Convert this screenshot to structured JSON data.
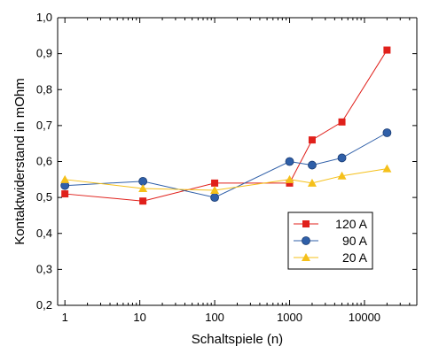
{
  "chart_data": {
    "type": "line",
    "xlabel": "Schaltspiele (n)",
    "ylabel": "Kontaktwiderstand in mOhm",
    "xscale": "log",
    "xlim": [
      0.8,
      50000
    ],
    "ylim": [
      0.2,
      1.0
    ],
    "xticks": [
      1,
      10,
      100,
      1000,
      10000
    ],
    "xtick_labels": [
      "1",
      "10",
      "100",
      "1000",
      "10000"
    ],
    "yticks": [
      0.2,
      0.3,
      0.4,
      0.5,
      0.6,
      0.7,
      0.8,
      0.9,
      1.0
    ],
    "ytick_labels": [
      "0,2",
      "0,3",
      "0,4",
      "0,5",
      "0,6",
      "0,7",
      "0,8",
      "0,9",
      "1,0"
    ],
    "grid": false,
    "legend_position": "lower-right",
    "series": [
      {
        "name": "120 A",
        "color": "#e0201b",
        "marker": "square",
        "x": [
          1,
          11,
          100,
          1000,
          2000,
          5000,
          20000
        ],
        "y": [
          0.51,
          0.49,
          0.54,
          0.54,
          0.66,
          0.71,
          0.91
        ]
      },
      {
        "name": "90 A",
        "color": "#2f5fa8",
        "marker": "circle",
        "x": [
          1,
          11,
          100,
          1000,
          2000,
          5000,
          20000
        ],
        "y": [
          0.533,
          0.545,
          0.5,
          0.6,
          0.59,
          0.61,
          0.68
        ]
      },
      {
        "name": "20 A",
        "color": "#f5c01a",
        "marker": "triangle",
        "x": [
          1,
          11,
          100,
          1000,
          2000,
          5000,
          20000
        ],
        "y": [
          0.55,
          0.525,
          0.52,
          0.55,
          0.54,
          0.56,
          0.58
        ]
      }
    ]
  }
}
